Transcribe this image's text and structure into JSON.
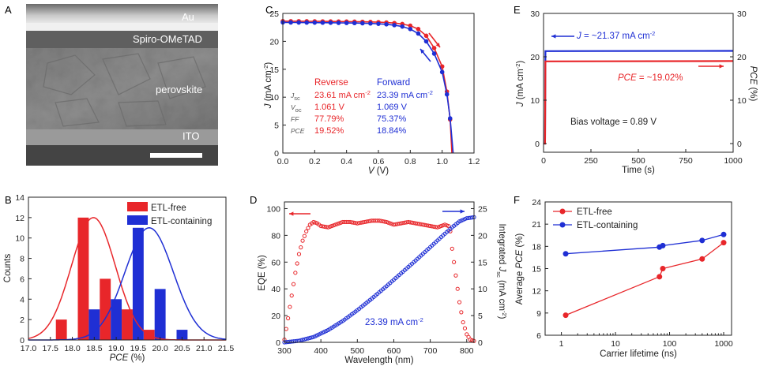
{
  "panel_letters": [
    "A",
    "B",
    "C",
    "D",
    "E",
    "F"
  ],
  "colors": {
    "red": "#e8262a",
    "blue": "#1f2fd4",
    "axis": "#222222",
    "gray_text": "#444444"
  },
  "panel_a": {
    "layer_labels": [
      "Au",
      "Spiro-OMeTAD",
      "perovskite",
      "ITO"
    ]
  },
  "chart_data": [
    {
      "panel": "B",
      "type": "bar",
      "xlabel": "PCE (%)",
      "ylabel": "Counts",
      "xlim": [
        17.0,
        21.5
      ],
      "ylim": [
        0,
        14
      ],
      "xticks": [
        "17.0",
        "17.5",
        "18.0",
        "18.5",
        "19.0",
        "19.5",
        "20.0",
        "20.5",
        "21.0",
        "21.5"
      ],
      "yticks": [
        "0",
        "2",
        "4",
        "6",
        "8",
        "10",
        "12",
        "14"
      ],
      "bin_width": 0.25,
      "series": [
        {
          "name": "ETL-free",
          "color": "#e8262a",
          "bars": [
            {
              "x": 17.75,
              "y": 2
            },
            {
              "x": 18.25,
              "y": 12
            },
            {
              "x": 18.75,
              "y": 6
            },
            {
              "x": 19.25,
              "y": 3
            },
            {
              "x": 19.75,
              "y": 1
            }
          ],
          "fit_mean": 18.48,
          "fit_sd": 0.5,
          "fit_peak": 12
        },
        {
          "name": "ETL-containing",
          "color": "#1f2fd4",
          "bars": [
            {
              "x": 18.5,
              "y": 3
            },
            {
              "x": 19.0,
              "y": 4
            },
            {
              "x": 19.5,
              "y": 11
            },
            {
              "x": 20.0,
              "y": 5
            },
            {
              "x": 20.5,
              "y": 1
            }
          ],
          "fit_mean": 19.75,
          "fit_sd": 0.55,
          "fit_peak": 11
        }
      ]
    },
    {
      "panel": "C",
      "type": "line",
      "xlabel": "V (V)",
      "ylabel": "J (mA cm-2)",
      "xlim": [
        0.0,
        1.2
      ],
      "ylim": [
        0,
        25
      ],
      "xticks": [
        "0.0",
        "0.2",
        "0.4",
        "0.6",
        "0.8",
        "1.0",
        "1.2"
      ],
      "yticks": [
        "0",
        "5",
        "10",
        "15",
        "20",
        "25"
      ],
      "series": [
        {
          "name": "Reverse",
          "color": "#e8262a",
          "points": [
            [
              0,
              23.61
            ],
            [
              0.05,
              23.6
            ],
            [
              0.1,
              23.6
            ],
            [
              0.15,
              23.59
            ],
            [
              0.2,
              23.58
            ],
            [
              0.25,
              23.57
            ],
            [
              0.3,
              23.56
            ],
            [
              0.35,
              23.55
            ],
            [
              0.4,
              23.54
            ],
            [
              0.45,
              23.52
            ],
            [
              0.5,
              23.5
            ],
            [
              0.55,
              23.47
            ],
            [
              0.6,
              23.43
            ],
            [
              0.65,
              23.37
            ],
            [
              0.7,
              23.27
            ],
            [
              0.75,
              23.1
            ],
            [
              0.8,
              22.8
            ],
            [
              0.85,
              22.2
            ],
            [
              0.9,
              21.0
            ],
            [
              0.95,
              18.8
            ],
            [
              1.0,
              15.5
            ],
            [
              1.03,
              11
            ],
            [
              1.05,
              6
            ],
            [
              1.061,
              0
            ]
          ]
        },
        {
          "name": "Forward",
          "color": "#1f2fd4",
          "points": [
            [
              0,
              23.39
            ],
            [
              0.05,
              23.38
            ],
            [
              0.1,
              23.37
            ],
            [
              0.15,
              23.36
            ],
            [
              0.2,
              23.35
            ],
            [
              0.25,
              23.34
            ],
            [
              0.3,
              23.33
            ],
            [
              0.35,
              23.31
            ],
            [
              0.4,
              23.29
            ],
            [
              0.45,
              23.27
            ],
            [
              0.5,
              23.24
            ],
            [
              0.55,
              23.2
            ],
            [
              0.6,
              23.14
            ],
            [
              0.65,
              23.05
            ],
            [
              0.7,
              22.9
            ],
            [
              0.75,
              22.65
            ],
            [
              0.8,
              22.2
            ],
            [
              0.85,
              21.4
            ],
            [
              0.9,
              20.0
            ],
            [
              0.95,
              17.8
            ],
            [
              1.0,
              14.5
            ],
            [
              1.03,
              10.5
            ],
            [
              1.05,
              6.2
            ],
            [
              1.069,
              0
            ]
          ]
        }
      ],
      "table": {
        "headers": [
          "Reverse",
          "Forward"
        ],
        "row_labels": [
          "Jsc",
          "Voc",
          "FF",
          "PCE"
        ],
        "reverse": [
          "23.61 mA cm-2",
          "1.061 V",
          "77.79%",
          "19.52%"
        ],
        "forward": [
          "23.39 mA cm-2",
          "1.069 V",
          "75.37%",
          "18.84%"
        ]
      }
    },
    {
      "panel": "D",
      "type": "line",
      "xlabel": "Wavelength (nm)",
      "ylabel": "EQE (%)",
      "ylabel_right": "Integrated Jsc (mA cm-2)",
      "xlim": [
        300,
        820
      ],
      "ylim": [
        0,
        105
      ],
      "ylim_right": [
        0,
        26.25
      ],
      "xticks": [
        "300",
        "400",
        "500",
        "600",
        "700",
        "800"
      ],
      "yticks": [
        "0",
        "20",
        "40",
        "60",
        "80",
        "100"
      ],
      "yticks_right": [
        "0",
        "5",
        "10",
        "15",
        "20",
        "25"
      ],
      "annotation": "23.39 mA cm-2",
      "series": [
        {
          "name": "EQE",
          "color": "#e8262a",
          "points": [
            [
              300,
              2
            ],
            [
              310,
              18
            ],
            [
              320,
              35
            ],
            [
              330,
              52
            ],
            [
              340,
              66
            ],
            [
              350,
              76
            ],
            [
              360,
              83
            ],
            [
              370,
              88
            ],
            [
              380,
              90
            ],
            [
              390,
              89
            ],
            [
              400,
              87
            ],
            [
              420,
              86
            ],
            [
              440,
              88
            ],
            [
              460,
              90
            ],
            [
              480,
              90
            ],
            [
              500,
              89
            ],
            [
              520,
              90
            ],
            [
              540,
              91
            ],
            [
              560,
              91
            ],
            [
              580,
              90
            ],
            [
              600,
              88
            ],
            [
              620,
              89
            ],
            [
              640,
              90
            ],
            [
              660,
              89
            ],
            [
              680,
              88
            ],
            [
              700,
              87
            ],
            [
              720,
              86
            ],
            [
              740,
              88
            ],
            [
              750,
              87
            ],
            [
              755,
              83
            ],
            [
              760,
              70
            ],
            [
              770,
              50
            ],
            [
              780,
              30
            ],
            [
              790,
              15
            ],
            [
              800,
              6
            ],
            [
              810,
              2
            ],
            [
              820,
              1
            ]
          ]
        },
        {
          "name": "Integrated Jsc",
          "color": "#1f2fd4",
          "points": [
            [
              300,
              0
            ],
            [
              340,
              0.3
            ],
            [
              380,
              1.0
            ],
            [
              420,
              2.3
            ],
            [
              460,
              4.0
            ],
            [
              500,
              6.0
            ],
            [
              540,
              8.2
            ],
            [
              580,
              10.5
            ],
            [
              620,
              12.9
            ],
            [
              660,
              15.3
            ],
            [
              700,
              17.8
            ],
            [
              740,
              20.3
            ],
            [
              760,
              21.5
            ],
            [
              780,
              22.6
            ],
            [
              800,
              23.2
            ],
            [
              820,
              23.39
            ]
          ]
        }
      ]
    },
    {
      "panel": "E",
      "type": "line",
      "xlabel": "Time (s)",
      "ylabel": "J (mA cm-2)",
      "ylabel_right": "PCE (%)",
      "xlim": [
        0,
        1000
      ],
      "ylim": [
        -2,
        30
      ],
      "xticks": [
        "0",
        "250",
        "500",
        "750",
        "1000"
      ],
      "yticks": [
        "0",
        "10",
        "20",
        "30"
      ],
      "yticks_right": [
        "0",
        "10",
        "20",
        "30"
      ],
      "annotations": [
        "J = ~21.37 mA cm-2",
        "PCE = ~19.02%",
        "Bias voltage = 0.89 V"
      ],
      "series": [
        {
          "name": "J",
          "color": "#1f2fd4",
          "points": [
            [
              0,
              0
            ],
            [
              8,
              0
            ],
            [
              10,
              21.3
            ],
            [
              1000,
              21.37
            ]
          ]
        },
        {
          "name": "PCE",
          "color": "#e8262a",
          "points": [
            [
              0,
              0
            ],
            [
              8,
              0
            ],
            [
              10,
              18.95
            ],
            [
              1000,
              19.02
            ]
          ]
        }
      ]
    },
    {
      "panel": "F",
      "type": "line",
      "xscale": "log",
      "xlabel": "Carrier lifetime (ns)",
      "ylabel": "Average PCE (%)",
      "xlim": [
        0.5,
        1400
      ],
      "ylim": [
        6,
        24
      ],
      "xticks": [
        "1",
        "10",
        "100",
        "1000"
      ],
      "yticks": [
        "6",
        "9",
        "12",
        "15",
        "18",
        "21",
        "24"
      ],
      "series": [
        {
          "name": "ETL-free",
          "color": "#e8262a",
          "points": [
            [
              1.2,
              8.7
            ],
            [
              65,
              13.9
            ],
            [
              75,
              15.0
            ],
            [
              400,
              16.3
            ],
            [
              1000,
              18.5
            ]
          ]
        },
        {
          "name": "ETL-containing",
          "color": "#1f2fd4",
          "points": [
            [
              1.2,
              17.0
            ],
            [
              65,
              17.9
            ],
            [
              75,
              18.1
            ],
            [
              400,
              18.8
            ],
            [
              1000,
              19.6
            ]
          ]
        }
      ]
    }
  ]
}
